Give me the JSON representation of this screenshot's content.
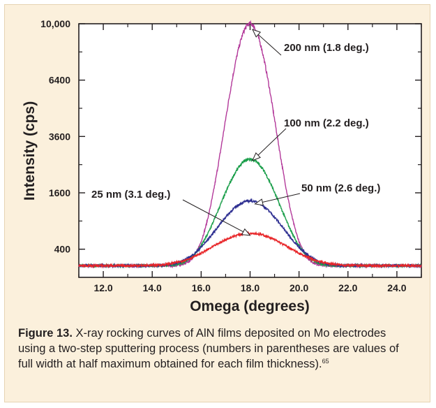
{
  "chart_data": {
    "type": "line",
    "xlabel": "Omega (degrees)",
    "ylabel": "Intensity (cps)",
    "xlim": [
      11.0,
      25.0
    ],
    "ylim": [
      10,
      100
    ],
    "y_scale": "sqrt",
    "x_ticks": [
      "12.0",
      "14.0",
      "16.0",
      "18.0",
      "20.0",
      "22.0",
      "24.0"
    ],
    "x_tick_values": [
      12,
      14,
      16,
      18,
      20,
      22,
      24
    ],
    "y_ticks": [
      "400",
      "1600",
      "3600",
      "6400",
      "10,000"
    ],
    "y_tick_values": [
      400,
      1600,
      3600,
      6400,
      10000
    ],
    "grid": false,
    "series": [
      {
        "name": "200 nm (1.8 deg.)",
        "color": "#b3399a",
        "peak": 10000,
        "center": 18.0,
        "fwhm": 1.8
      },
      {
        "name": "100 nm (2.2 deg.)",
        "color": "#1a9e4a",
        "peak": 2700,
        "center": 18.0,
        "fwhm": 2.2
      },
      {
        "name": "50 nm (2.6 deg.)",
        "color": "#2e2f91",
        "peak": 1380,
        "center": 18.0,
        "fwhm": 2.6
      },
      {
        "name": "25 nm (3.1 deg.)",
        "color": "#e8272a",
        "peak": 660,
        "center": 18.0,
        "fwhm": 3.1
      }
    ],
    "baseline": 200,
    "annotations": [
      {
        "text": "200 nm (1.8 deg.)",
        "point_to": [
          18.1,
          9600
        ]
      },
      {
        "text": "100 nm (2.2 deg.)",
        "point_to": [
          18.1,
          2650
        ]
      },
      {
        "text": "50 nm (2.6 deg.)",
        "point_to": [
          18.2,
          1300
        ]
      },
      {
        "text": "25 nm (3.1 deg.)",
        "point_to": [
          18.0,
          620
        ]
      }
    ]
  },
  "caption": {
    "label": "Figure 13.",
    "text": " X-ray rocking curves of AlN films deposited on Mo electrodes using a two-step sputtering process (numbers in parentheses are values of full width at half maximum obtained for each film thickness).",
    "ref": "65"
  }
}
